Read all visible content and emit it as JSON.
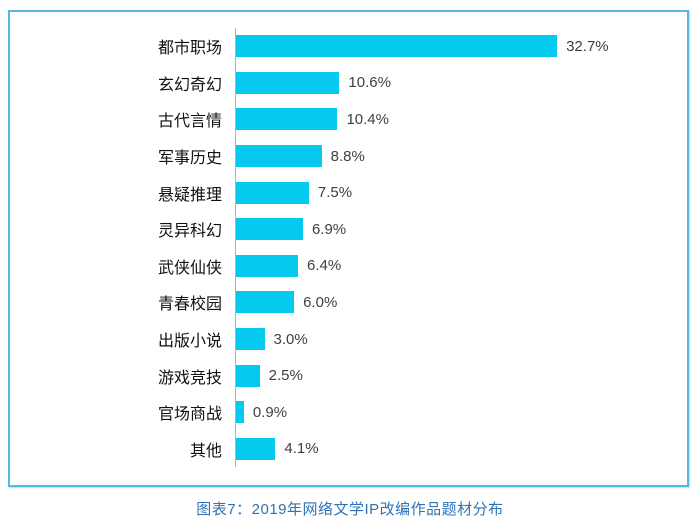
{
  "chart_data": {
    "type": "bar",
    "orientation": "horizontal",
    "title": "图表7：2019年网络文学IP改编作品题材分布",
    "categories": [
      "都市职场",
      "玄幻奇幻",
      "古代言情",
      "军事历史",
      "悬疑推理",
      "灵异科幻",
      "武侠仙侠",
      "青春校园",
      "出版小说",
      "游戏竞技",
      "官场商战",
      "其他"
    ],
    "values": [
      32.7,
      10.6,
      10.4,
      8.8,
      7.5,
      6.9,
      6.4,
      6.0,
      3.0,
      2.5,
      0.9,
      4.1
    ],
    "value_labels": [
      "32.7%",
      "10.6%",
      "10.4%",
      "8.8%",
      "7.5%",
      "6.9%",
      "6.4%",
      "6.0%",
      "3.0%",
      "2.5%",
      "0.9%",
      "4.1%"
    ],
    "xlim": [
      0,
      35
    ],
    "grid": false,
    "legend": "none",
    "value_label_position": "outside-end",
    "bar_color": "#05c9ef",
    "frame_border_color": "#56b7e5",
    "axis_line_color": "#b3b3b3",
    "caption_color": "#2e74b5",
    "value_text_color": "#3f3f3f"
  }
}
